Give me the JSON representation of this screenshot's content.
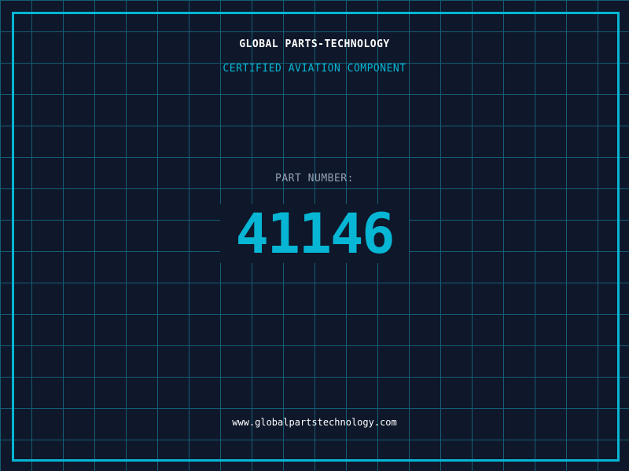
{
  "header": {
    "company": "GLOBAL PARTS-TECHNOLOGY",
    "subtitle": "CERTIFIED AVIATION COMPONENT"
  },
  "part": {
    "label": "PART NUMBER:",
    "number": "4114б"
  },
  "footer": {
    "url": "www.globalpartstechnology.com"
  },
  "colors": {
    "background": "#0f172a",
    "accent": "#06b6d4",
    "grid": "#155e75",
    "label": "#94a3b8"
  }
}
